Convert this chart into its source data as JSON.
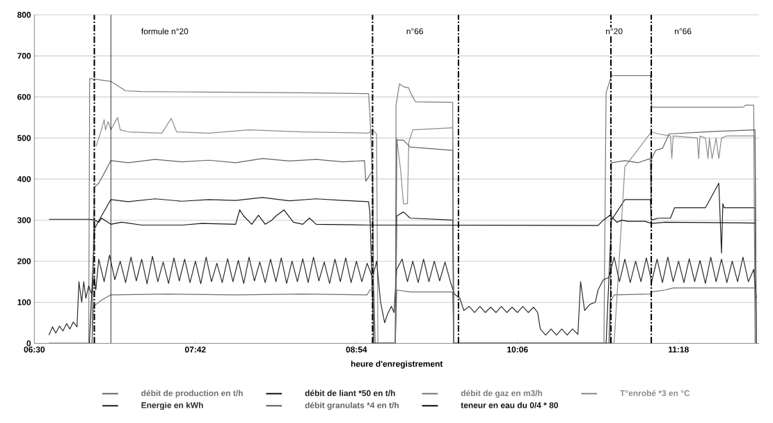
{
  "chart_data": {
    "type": "line",
    "xlabel": "heure d'enregistrement",
    "xlim": [
      6.5,
      11.9
    ],
    "ylim": [
      0,
      800
    ],
    "xticks": [
      {
        "value": 6.5,
        "label": "06:30"
      },
      {
        "value": 7.7,
        "label": "07:42"
      },
      {
        "value": 8.9,
        "label": "08:54"
      },
      {
        "value": 10.1,
        "label": "10:06"
      },
      {
        "value": 11.3,
        "label": "11:18"
      }
    ],
    "yticks": [
      0,
      100,
      200,
      300,
      400,
      500,
      600,
      700,
      800
    ],
    "grid": "y",
    "legend": "bottom",
    "series": [
      {
        "name": "débit de production en t/h",
        "color": "#6e6e6e",
        "x": [
          6.609,
          6.93,
          6.94,
          7.0,
          7.07,
          7.5,
          8.0,
          8.5,
          8.98,
          9.0,
          9.03,
          9.04,
          9.19,
          9.2,
          9.3,
          9.617,
          9.625,
          10.78,
          10.79,
          10.82,
          11.09,
          11.1,
          11.2,
          11.26,
          11.87,
          11.88
        ],
        "values": [
          0,
          0,
          90,
          105,
          118,
          120,
          118,
          120,
          118,
          130,
          130,
          0,
          0,
          130,
          125,
          125,
          0,
          0,
          100,
          118,
          120,
          125,
          130,
          135,
          135,
          0
        ]
      },
      {
        "name": "débit de liant *50 en t/h",
        "color": "#1e1e1e",
        "x": [
          6.91,
          6.95,
          7.0,
          7.07,
          7.2,
          7.4,
          7.6,
          7.8,
          8.0,
          8.2,
          8.4,
          8.6,
          8.8,
          8.99,
          9.0,
          9.03,
          9.19,
          9.2,
          9.25,
          9.3,
          9.617,
          9.625,
          10.76,
          10.8,
          10.9,
          11.09,
          11.097,
          11.15,
          11.24,
          11.27,
          11.5,
          11.6,
          11.62,
          11.63,
          11.64,
          11.66,
          11.87,
          11.88
        ],
        "values": [
          0,
          280,
          310,
          350,
          345,
          352,
          346,
          350,
          348,
          355,
          347,
          352,
          348,
          345,
          320,
          0,
          0,
          310,
          320,
          305,
          300,
          0,
          0,
          300,
          350,
          350,
          300,
          305,
          305,
          330,
          330,
          390,
          220,
          340,
          330,
          330,
          330,
          0
        ]
      },
      {
        "name": "débit de gaz en m3/h",
        "color": "#7a7a7a",
        "x": [
          6.609,
          6.905,
          6.912,
          7.07,
          7.18,
          7.3,
          7.8,
          8.5,
          8.99,
          9.0,
          9.02,
          9.03,
          9.19,
          9.195,
          9.22,
          9.25,
          9.29,
          9.3,
          9.32,
          9.34,
          9.6,
          9.617,
          9.625,
          10.744,
          10.76,
          10.8,
          11.09,
          11.097,
          11.1,
          11.78,
          11.8,
          11.86,
          11.87
        ],
        "values": [
          0,
          0,
          645,
          638,
          615,
          613,
          612,
          610,
          608,
          560,
          400,
          0,
          0,
          580,
          632,
          625,
          622,
          612,
          600,
          588,
          587,
          587,
          0,
          0,
          610,
          652,
          652,
          600,
          575,
          575,
          580,
          580,
          0
        ]
      },
      {
        "name": "T°enrobé *3 en °C",
        "color": "#8c8c8c",
        "x": [
          6.96,
          6.98,
          7.0,
          7.02,
          7.03,
          7.05,
          7.07,
          7.12,
          7.14,
          7.2,
          7.45,
          7.52,
          7.56,
          7.8,
          8.1,
          8.5,
          8.99,
          9.02,
          9.05,
          9.06,
          9.19,
          9.2,
          9.23,
          9.25,
          9.28,
          9.29,
          9.32,
          9.617,
          9.625,
          10.82,
          10.9,
          11.097,
          11.15,
          11.24,
          11.25,
          11.26,
          11.44,
          11.45,
          11.46,
          11.5,
          11.52,
          11.53,
          11.55,
          11.58,
          11.6,
          11.62,
          11.66,
          11.87,
          11.88
        ],
        "values": [
          480,
          500,
          520,
          545,
          520,
          540,
          520,
          550,
          520,
          515,
          512,
          548,
          515,
          512,
          520,
          515,
          512,
          520,
          510,
          0,
          0,
          500,
          420,
          340,
          340,
          490,
          520,
          525,
          0,
          0,
          430,
          515,
          510,
          505,
          450,
          505,
          500,
          450,
          505,
          500,
          450,
          500,
          450,
          500,
          450,
          500,
          505,
          505,
          0
        ]
      },
      {
        "name": "Energie en kWh",
        "color": "#2a2a2a",
        "x": [
          6.609,
          6.635,
          6.66,
          6.687,
          6.713,
          6.74,
          6.765,
          6.79,
          6.818,
          6.832,
          6.853,
          6.868,
          6.884,
          6.905,
          6.926,
          6.947,
          6.958,
          6.98,
          7.02,
          7.06,
          7.1,
          7.14,
          7.18,
          7.22,
          7.26,
          7.3,
          7.34,
          7.38,
          7.42,
          7.46,
          7.5,
          7.54,
          7.58,
          7.62,
          7.66,
          7.7,
          7.74,
          7.78,
          7.82,
          7.86,
          7.9,
          7.94,
          7.98,
          8.02,
          8.06,
          8.1,
          8.14,
          8.18,
          8.22,
          8.26,
          8.3,
          8.34,
          8.38,
          8.42,
          8.46,
          8.5,
          8.54,
          8.58,
          8.62,
          8.66,
          8.7,
          8.74,
          8.78,
          8.82,
          8.86,
          8.9,
          8.94,
          8.98,
          9.02,
          9.05,
          9.08,
          9.11,
          9.13,
          9.16,
          9.18,
          9.2,
          9.24,
          9.28,
          9.32,
          9.36,
          9.4,
          9.44,
          9.48,
          9.52,
          9.56,
          9.6,
          9.63,
          9.67,
          9.7,
          9.74,
          9.78,
          9.82,
          9.86,
          9.9,
          9.94,
          9.98,
          10.02,
          10.06,
          10.1,
          10.14,
          10.18,
          10.22,
          10.25,
          10.27,
          10.31,
          10.35,
          10.39,
          10.43,
          10.47,
          10.51,
          10.55,
          10.57,
          10.6,
          10.64,
          10.68,
          10.7,
          10.74,
          10.78,
          10.82,
          10.86,
          10.9,
          10.94,
          10.98,
          11.02,
          11.06,
          11.1,
          11.14,
          11.18,
          11.22,
          11.26,
          11.3,
          11.34,
          11.38,
          11.42,
          11.46,
          11.5,
          11.54,
          11.58,
          11.62,
          11.66,
          11.7,
          11.74,
          11.78,
          11.82,
          11.86,
          11.88
        ],
        "values": [
          20,
          40,
          25,
          42,
          30,
          48,
          35,
          52,
          40,
          150,
          100,
          150,
          110,
          140,
          120,
          160,
          130,
          205,
          150,
          215,
          155,
          200,
          148,
          210,
          152,
          205,
          145,
          212,
          150,
          198,
          146,
          208,
          152,
          205,
          148,
          200,
          145,
          210,
          150,
          195,
          148,
          206,
          150,
          202,
          146,
          210,
          152,
          198,
          148,
          205,
          150,
          208,
          146,
          200,
          150,
          206,
          148,
          210,
          152,
          198,
          146,
          205,
          150,
          208,
          148,
          200,
          150,
          195,
          160,
          200,
          100,
          50,
          70,
          90,
          75,
          180,
          205,
          150,
          200,
          148,
          205,
          150,
          200,
          152,
          198,
          150,
          120,
          110,
          80,
          90,
          75,
          90,
          75,
          88,
          75,
          90,
          75,
          88,
          75,
          90,
          75,
          88,
          75,
          35,
          20,
          35,
          20,
          35,
          20,
          35,
          22,
          150,
          80,
          95,
          100,
          130,
          155,
          160,
          210,
          150,
          205,
          148,
          200,
          150,
          208,
          150,
          205,
          148,
          210,
          150,
          200,
          148,
          206,
          150,
          202,
          146,
          210,
          150,
          205,
          148,
          200,
          150,
          210,
          150,
          180,
          110
        ]
      },
      {
        "name": "débit granulats *4 en t/h",
        "color": "#626262",
        "x": [
          6.93,
          6.947,
          6.98,
          7.03,
          7.07,
          7.2,
          7.4,
          7.6,
          7.8,
          8.0,
          8.2,
          8.4,
          8.6,
          8.8,
          8.96,
          8.97,
          9.0,
          9.02,
          9.03,
          9.19,
          9.2,
          9.25,
          9.3,
          9.617,
          9.625,
          10.79,
          10.8,
          10.9,
          11.0,
          11.09,
          11.095,
          11.1,
          11.13,
          11.18,
          11.23,
          11.5,
          11.87,
          11.88
        ],
        "values": [
          0,
          380,
          390,
          420,
          445,
          440,
          448,
          442,
          446,
          440,
          450,
          444,
          448,
          442,
          445,
          395,
          410,
          420,
          0,
          0,
          495,
          495,
          478,
          470,
          0,
          0,
          440,
          445,
          440,
          450,
          340,
          450,
          470,
          475,
          510,
          515,
          520,
          0
        ]
      },
      {
        "name": "teneur en eau du 0/4 * 80",
        "color": "#121212",
        "x": [
          6.609,
          6.91,
          6.95,
          6.98,
          7.0,
          7.07,
          7.15,
          7.3,
          7.6,
          7.75,
          8.0,
          8.03,
          8.06,
          8.12,
          8.17,
          8.22,
          8.27,
          8.3,
          8.36,
          8.43,
          8.5,
          8.55,
          8.6,
          8.99,
          10.7,
          10.74,
          10.79,
          10.84,
          10.88,
          10.92,
          11.05,
          11.1,
          11.2,
          11.87
        ],
        "values": [
          302,
          302,
          300,
          295,
          305,
          290,
          295,
          288,
          288,
          292,
          290,
          325,
          310,
          290,
          312,
          290,
          300,
          310,
          325,
          295,
          290,
          305,
          290,
          288,
          287,
          300,
          312,
          295,
          300,
          297,
          297,
          292,
          295,
          293
        ]
      }
    ],
    "ref_lines": [
      {
        "axis": "x",
        "value": 6.947,
        "color": "#000000",
        "line_style": "dashed"
      },
      {
        "axis": "x",
        "value": 7.07,
        "color": "#000000",
        "line_style": "solid"
      },
      {
        "axis": "x",
        "value": 9.02,
        "color": "#000000",
        "line_style": "dashed"
      },
      {
        "axis": "x",
        "value": 9.66,
        "color": "#000000",
        "line_style": "dashed"
      },
      {
        "axis": "x",
        "value": 10.796,
        "color": "#000000",
        "line_style": "dashed"
      },
      {
        "axis": "x",
        "value": 11.097,
        "color": "#000000",
        "line_style": "dashed"
      }
    ],
    "annotations": [
      "formule n°20",
      "n°66",
      "n°20",
      "n°66"
    ]
  }
}
